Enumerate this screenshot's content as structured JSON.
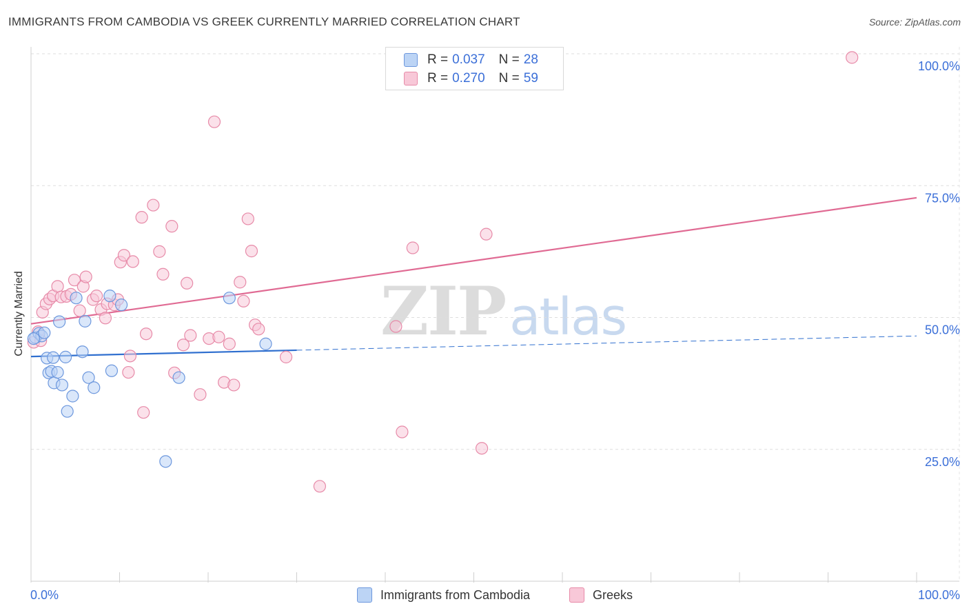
{
  "title": "IMMIGRANTS FROM CAMBODIA VS GREEK CURRENTLY MARRIED CORRELATION CHART",
  "source": "Source: ZipAtlas.com",
  "watermark": {
    "part1": "ZIP",
    "part2": "atlas"
  },
  "legend": {
    "rows": [
      {
        "r_label": "R =",
        "r_value": "0.037",
        "n_label": "N =",
        "n_value": "28"
      },
      {
        "r_label": "R =",
        "r_value": "0.270",
        "n_label": "N =",
        "n_value": "59"
      }
    ]
  },
  "bottom_legend": {
    "cambodia": "Immigrants from Cambodia",
    "greeks": "Greeks"
  },
  "colors": {
    "cambodia_fill": "#bcd4f5",
    "cambodia_stroke": "#6c97dd",
    "cambodia_line": "#2f6fcf",
    "greek_fill": "#f8c8d8",
    "greek_stroke": "#e78aa8",
    "greek_line": "#e06a93",
    "axis_text": "#3b6fd8"
  },
  "chart_data": {
    "type": "scatter",
    "title": "IMMIGRANTS FROM CAMBODIA VS GREEK CURRENTLY MARRIED CORRELATION CHART",
    "xlabel": "",
    "ylabel": "Currently Married",
    "xlim": [
      0,
      100
    ],
    "ylim": [
      0,
      100
    ],
    "x_tick_labels": [
      "0.0%",
      "100.0%"
    ],
    "y_ticks": [
      25,
      50,
      75,
      100
    ],
    "y_tick_labels": [
      "25.0%",
      "50.0%",
      "75.0%",
      "100.0%"
    ],
    "series": [
      {
        "name": "Immigrants from Cambodia",
        "r": 0.037,
        "n": 28,
        "trend": {
          "x0": 0,
          "y0": 42.6,
          "x1": 30,
          "y1": 43.8,
          "dashed_to_x": 100,
          "dashed_to_y": 46.5
        },
        "points": [
          [
            0.5,
            46.2
          ],
          [
            0.9,
            47.0
          ],
          [
            1.2,
            46.5
          ],
          [
            1.5,
            47.1
          ],
          [
            1.8,
            42.3
          ],
          [
            2.0,
            39.5
          ],
          [
            2.3,
            39.8
          ],
          [
            2.5,
            42.4
          ],
          [
            2.6,
            37.6
          ],
          [
            3.0,
            39.6
          ],
          [
            3.2,
            49.2
          ],
          [
            3.5,
            37.2
          ],
          [
            3.9,
            42.5
          ],
          [
            4.1,
            32.2
          ],
          [
            4.7,
            35.1
          ],
          [
            5.1,
            53.7
          ],
          [
            5.8,
            43.5
          ],
          [
            6.1,
            49.3
          ],
          [
            6.5,
            38.6
          ],
          [
            7.1,
            36.7
          ],
          [
            8.9,
            54.1
          ],
          [
            9.1,
            39.9
          ],
          [
            10.2,
            52.4
          ],
          [
            15.2,
            22.7
          ],
          [
            16.7,
            38.6
          ],
          [
            22.4,
            53.7
          ],
          [
            26.5,
            45.0
          ],
          [
            0.3,
            46.0
          ]
        ]
      },
      {
        "name": "Greeks",
        "r": 0.27,
        "n": 59,
        "trend": {
          "x0": 0,
          "y0": 48.8,
          "x1": 100,
          "y1": 72.7
        },
        "points": [
          [
            0.3,
            45.3
          ],
          [
            0.8,
            47.3
          ],
          [
            1.1,
            45.6
          ],
          [
            1.3,
            51.0
          ],
          [
            1.7,
            52.6
          ],
          [
            2.1,
            53.5
          ],
          [
            2.5,
            54.1
          ],
          [
            3.0,
            55.9
          ],
          [
            3.4,
            53.9
          ],
          [
            4.0,
            54.0
          ],
          [
            4.5,
            54.4
          ],
          [
            4.9,
            57.1
          ],
          [
            5.5,
            51.3
          ],
          [
            5.9,
            55.9
          ],
          [
            6.2,
            57.7
          ],
          [
            7.0,
            53.4
          ],
          [
            7.4,
            54.1
          ],
          [
            7.9,
            51.5
          ],
          [
            8.4,
            49.9
          ],
          [
            8.6,
            52.6
          ],
          [
            9.4,
            52.4
          ],
          [
            9.8,
            53.4
          ],
          [
            10.1,
            60.5
          ],
          [
            10.5,
            61.8
          ],
          [
            11.5,
            60.6
          ],
          [
            11.2,
            42.7
          ],
          [
            11.0,
            39.6
          ],
          [
            12.5,
            69.0
          ],
          [
            12.7,
            32.0
          ],
          [
            13.0,
            46.9
          ],
          [
            13.8,
            71.3
          ],
          [
            14.5,
            62.5
          ],
          [
            14.9,
            58.2
          ],
          [
            15.9,
            67.3
          ],
          [
            16.2,
            39.5
          ],
          [
            17.2,
            44.8
          ],
          [
            17.6,
            56.5
          ],
          [
            18.0,
            46.6
          ],
          [
            19.1,
            35.4
          ],
          [
            20.1,
            46.0
          ],
          [
            20.7,
            87.1
          ],
          [
            21.2,
            46.3
          ],
          [
            21.8,
            37.7
          ],
          [
            22.4,
            45.0
          ],
          [
            22.9,
            37.2
          ],
          [
            23.6,
            56.7
          ],
          [
            24.0,
            53.1
          ],
          [
            24.5,
            68.7
          ],
          [
            24.9,
            62.6
          ],
          [
            25.3,
            48.6
          ],
          [
            25.7,
            47.8
          ],
          [
            28.8,
            42.5
          ],
          [
            32.6,
            18.0
          ],
          [
            41.2,
            48.3
          ],
          [
            41.9,
            28.3
          ],
          [
            43.1,
            63.2
          ],
          [
            50.9,
            25.2
          ],
          [
            51.4,
            65.8
          ],
          [
            92.7,
            99.3
          ]
        ]
      }
    ]
  }
}
